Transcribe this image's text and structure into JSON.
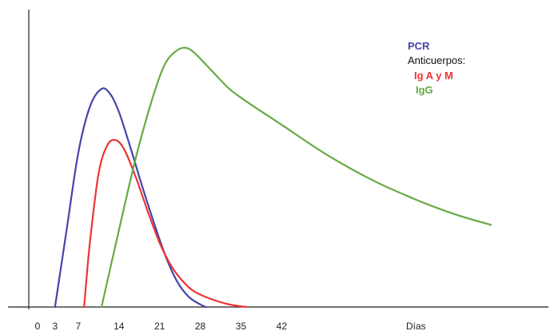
{
  "chart_data": {
    "type": "line",
    "xlabel": "Días",
    "ylabel": "",
    "xlim": [
      0,
      90
    ],
    "ylim": [
      0,
      1
    ],
    "x_ticks": [
      0,
      3,
      7,
      14,
      21,
      28,
      35,
      42
    ],
    "grid": false,
    "legend_position": "top-right",
    "legend": {
      "series_header": "PCR",
      "group_header": "Anticuerpos:",
      "items": [
        "Ig A y M",
        "IgG"
      ]
    },
    "series": [
      {
        "name": "PCR",
        "color": "#4444aa",
        "points": [
          [
            3,
            0
          ],
          [
            5,
            0.3
          ],
          [
            7,
            0.6
          ],
          [
            9,
            0.78
          ],
          [
            11,
            0.85
          ],
          [
            12.5,
            0.83
          ],
          [
            14,
            0.76
          ],
          [
            16,
            0.62
          ],
          [
            18,
            0.47
          ],
          [
            20,
            0.33
          ],
          [
            22,
            0.2
          ],
          [
            24,
            0.1
          ],
          [
            26,
            0.04
          ],
          [
            28,
            0.01
          ],
          [
            29,
            0
          ]
        ]
      },
      {
        "name": "Ig A y M",
        "color": "#ee3333",
        "points": [
          [
            8,
            0
          ],
          [
            9,
            0.25
          ],
          [
            10.5,
            0.52
          ],
          [
            12,
            0.63
          ],
          [
            13.5,
            0.65
          ],
          [
            15,
            0.61
          ],
          [
            17,
            0.5
          ],
          [
            19,
            0.37
          ],
          [
            21,
            0.25
          ],
          [
            23,
            0.16
          ],
          [
            25,
            0.1
          ],
          [
            27,
            0.06
          ],
          [
            30,
            0.03
          ],
          [
            33,
            0.01
          ],
          [
            36,
            0
          ]
        ]
      },
      {
        "name": "IgG",
        "color": "#66aa44",
        "points": [
          [
            11,
            0
          ],
          [
            14,
            0.3
          ],
          [
            17,
            0.59
          ],
          [
            20,
            0.83
          ],
          [
            22,
            0.95
          ],
          [
            24,
            1.0
          ],
          [
            25.5,
            1.01
          ],
          [
            27,
            0.99
          ],
          [
            30,
            0.92
          ],
          [
            33,
            0.85
          ],
          [
            36,
            0.8
          ],
          [
            42,
            0.71
          ],
          [
            50,
            0.59
          ],
          [
            58,
            0.49
          ],
          [
            66,
            0.41
          ],
          [
            72,
            0.36
          ],
          [
            78,
            0.32
          ]
        ]
      }
    ]
  },
  "colors": {
    "axis": "#222222",
    "pcr": "#4444aa",
    "header": "#111111",
    "igam": "#ee3333",
    "igg": "#66aa44"
  }
}
